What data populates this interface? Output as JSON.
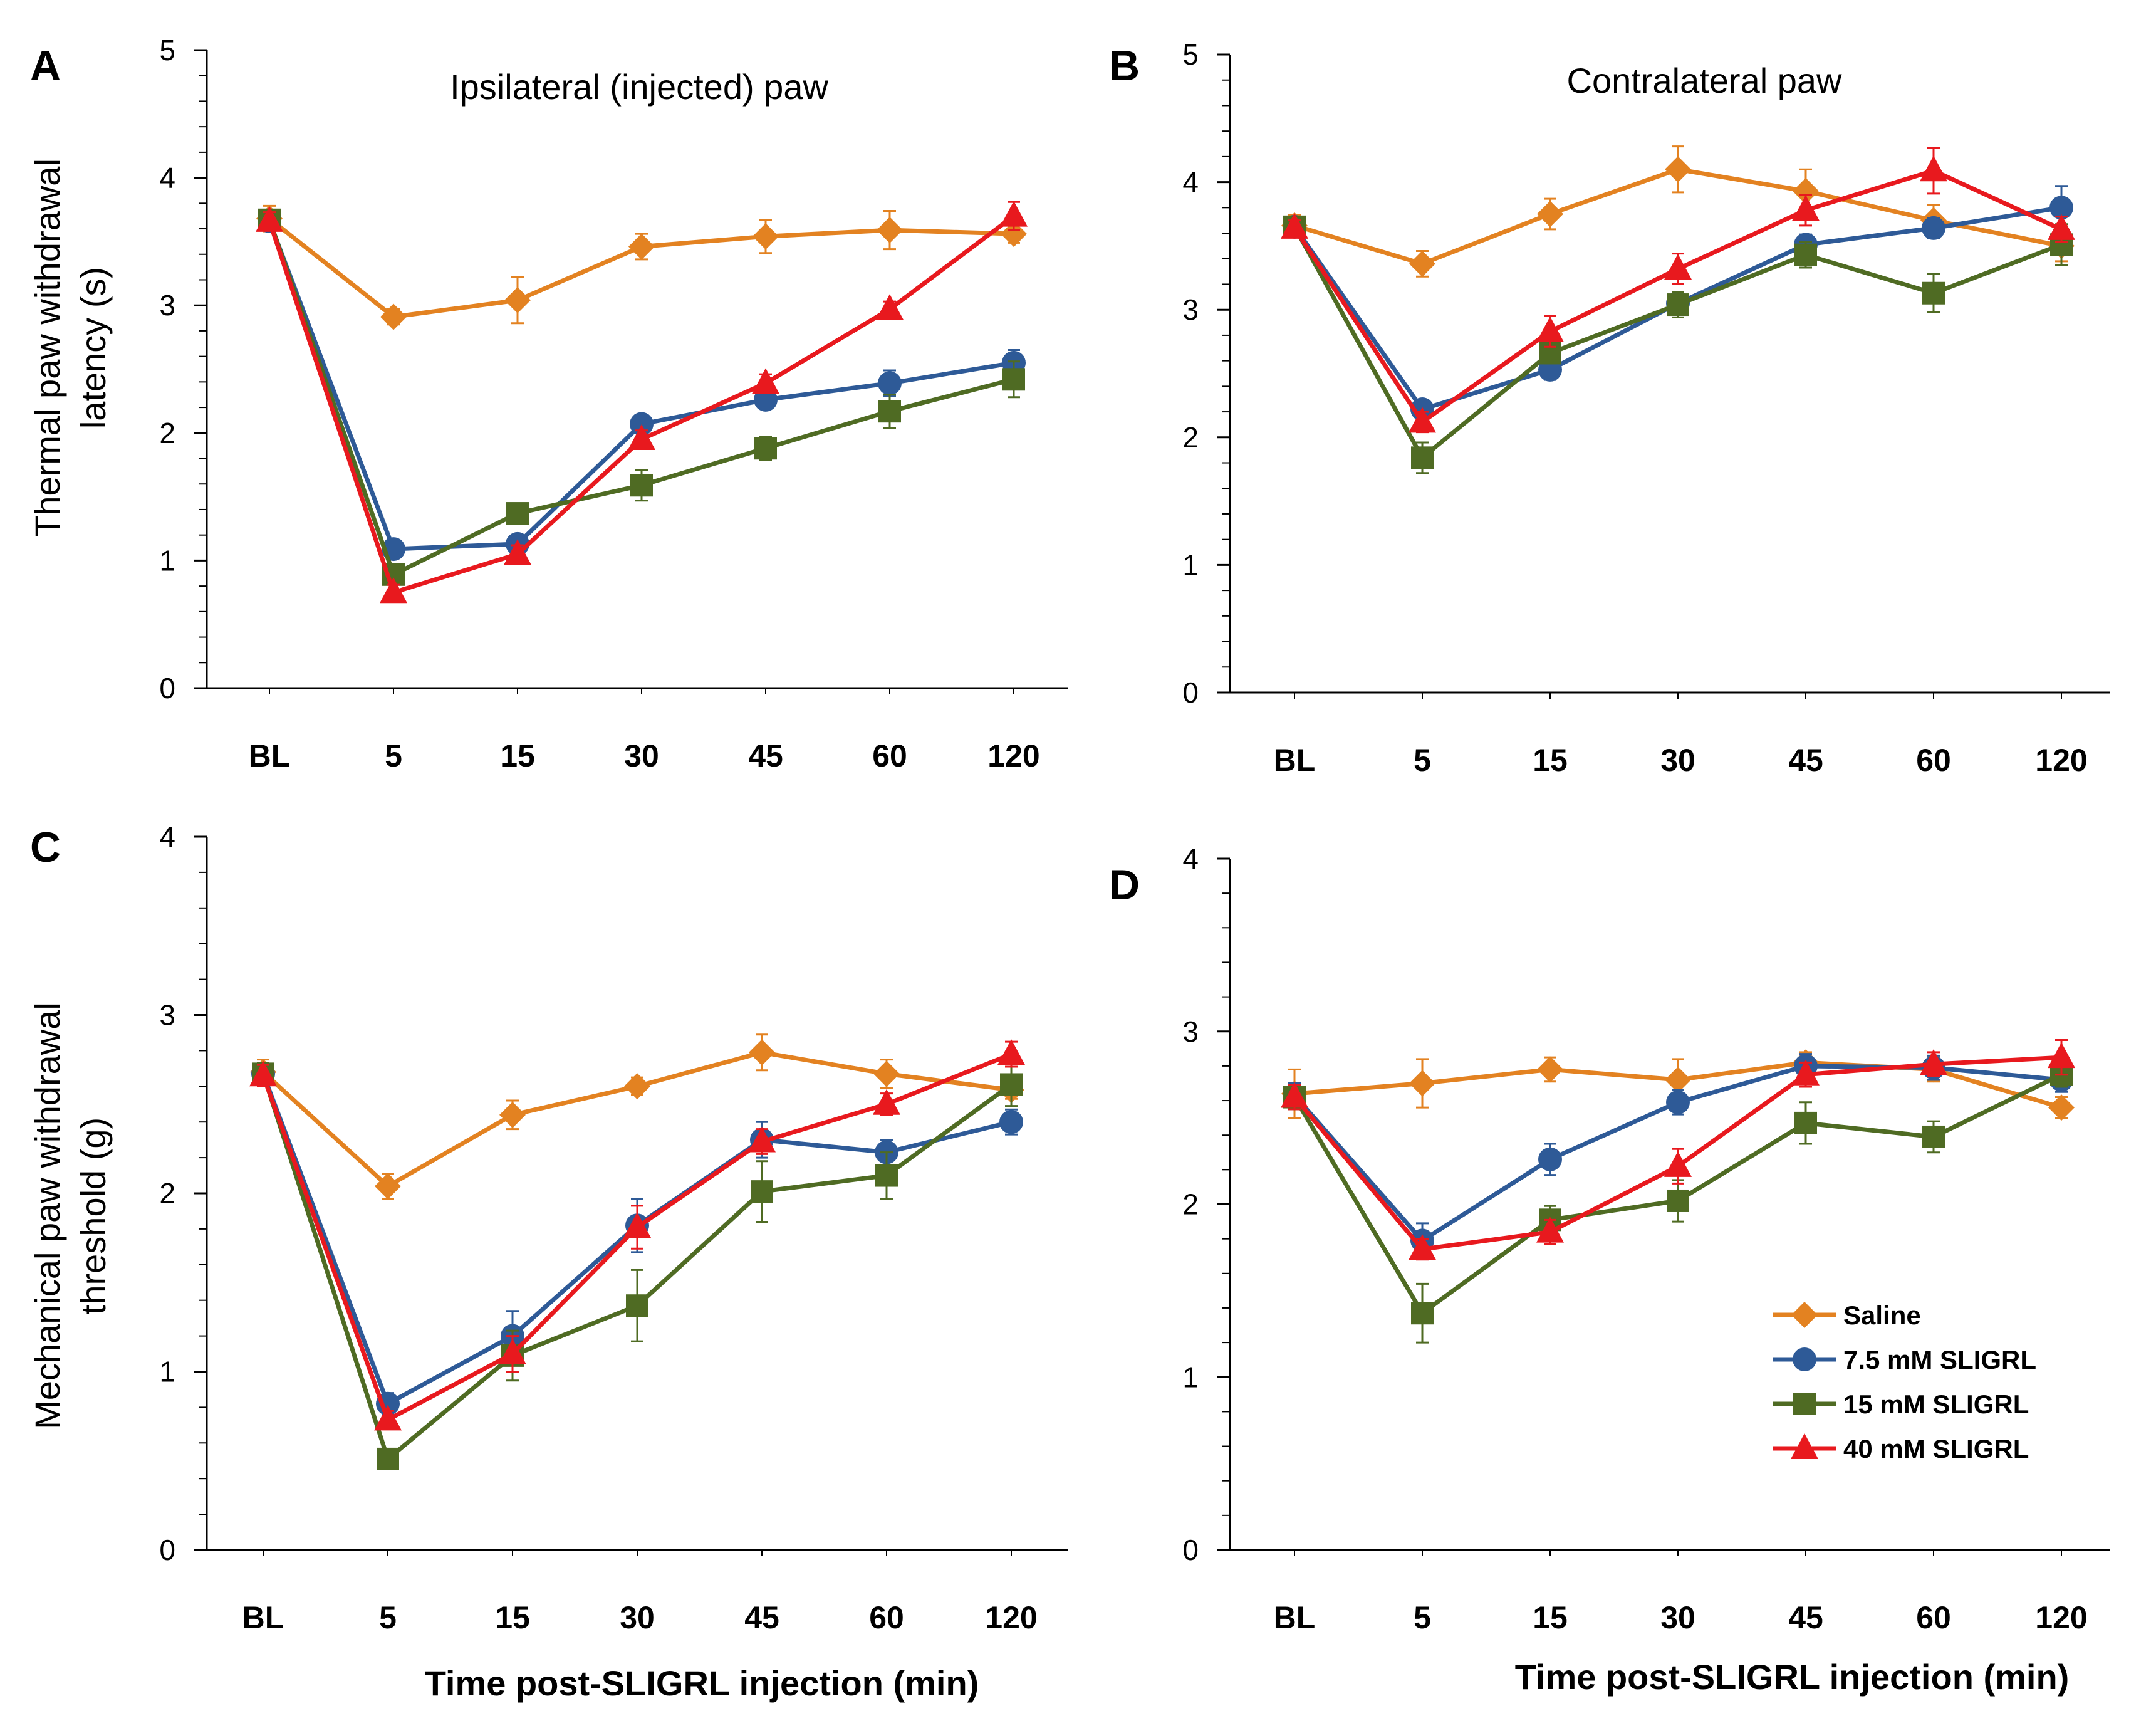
{
  "colors": {
    "saline": "#E38221",
    "sligrl_7_5": "#2E5A97",
    "sligrl_15": "#4F6B23",
    "sligrl_40": "#E8191E"
  },
  "legend": [
    {
      "key": "saline",
      "label": "Saline",
      "marker": "diamond"
    },
    {
      "key": "sligrl_7_5",
      "label": "7.5 mM SLIGRL",
      "marker": "circle"
    },
    {
      "key": "sligrl_15",
      "label": "15 mM SLIGRL",
      "marker": "square"
    },
    {
      "key": "sligrl_40",
      "label": "40 mM SLIGRL",
      "marker": "triangle"
    }
  ],
  "chart_data": [
    {
      "panel": "A",
      "type": "line",
      "title": "Ipsilateral (injected) paw",
      "ylabel_lines": [
        "Thermal paw withdrawal",
        "latency (s)"
      ],
      "xlabel": "",
      "categories": [
        "BL",
        "5",
        "15",
        "30",
        "45",
        "60",
        "120"
      ],
      "ylim": [
        0,
        5
      ],
      "yticks": [
        "0",
        "1",
        "2",
        "3",
        "4",
        "5"
      ],
      "series": [
        {
          "key": "saline",
          "name": "Saline",
          "values": [
            3.68,
            2.91,
            3.04,
            3.46,
            3.54,
            3.59,
            3.56
          ],
          "errors": [
            0.1,
            0.06,
            0.18,
            0.1,
            0.13,
            0.15,
            0.07
          ]
        },
        {
          "key": "sligrl_7_5",
          "name": "7.5 mM SLIGRL",
          "values": [
            3.66,
            1.09,
            1.13,
            2.07,
            2.26,
            2.39,
            2.55
          ],
          "errors": [
            0.07,
            0.05,
            0.05,
            0.06,
            0.07,
            0.1,
            0.1
          ]
        },
        {
          "key": "sligrl_15",
          "name": "15 mM SLIGRL",
          "values": [
            3.67,
            0.89,
            1.37,
            1.59,
            1.88,
            2.17,
            2.42
          ],
          "errors": [
            0.07,
            0.06,
            0.05,
            0.12,
            0.09,
            0.13,
            0.14
          ]
        },
        {
          "key": "sligrl_40",
          "name": "40 mM SLIGRL",
          "values": [
            3.66,
            0.75,
            1.05,
            1.95,
            2.39,
            2.97,
            3.7
          ],
          "errors": [
            0.07,
            0.06,
            0.07,
            0.07,
            0.07,
            0.06,
            0.11
          ]
        }
      ]
    },
    {
      "panel": "B",
      "type": "line",
      "title": "Contralateral  paw",
      "ylabel_lines": [],
      "xlabel": "",
      "categories": [
        "BL",
        "5",
        "15",
        "30",
        "45",
        "60",
        "120"
      ],
      "ylim": [
        0,
        5
      ],
      "yticks": [
        "0",
        "1",
        "2",
        "3",
        "4",
        "5"
      ],
      "series": [
        {
          "key": "saline",
          "name": "Saline",
          "values": [
            3.66,
            3.36,
            3.75,
            4.1,
            3.93,
            3.7,
            3.5
          ],
          "errors": [
            0.08,
            0.1,
            0.12,
            0.18,
            0.17,
            0.12,
            0.12
          ]
        },
        {
          "key": "sligrl_7_5",
          "name": "7.5 mM SLIGRL",
          "values": [
            3.65,
            2.22,
            2.53,
            3.05,
            3.51,
            3.64,
            3.8
          ],
          "errors": [
            0.06,
            0.05,
            0.08,
            0.08,
            0.08,
            0.08,
            0.17
          ]
        },
        {
          "key": "sligrl_15",
          "name": "15 mM SLIGRL",
          "values": [
            3.65,
            1.84,
            2.66,
            3.04,
            3.43,
            3.13,
            3.51
          ],
          "errors": [
            0.06,
            0.12,
            0.08,
            0.1,
            0.1,
            0.15,
            0.16
          ]
        },
        {
          "key": "sligrl_40",
          "name": "40 mM SLIGRL",
          "values": [
            3.64,
            2.12,
            2.83,
            3.32,
            3.78,
            4.09,
            3.63
          ],
          "errors": [
            0.06,
            0.08,
            0.12,
            0.12,
            0.12,
            0.18,
            0.1
          ]
        }
      ]
    },
    {
      "panel": "C",
      "type": "line",
      "title": "",
      "ylabel_lines": [
        "Mechanical paw withdrawal",
        "threshold (g)"
      ],
      "xlabel": "Time post-SLIGRL injection (min)",
      "categories": [
        "BL",
        "5",
        "15",
        "30",
        "45",
        "60",
        "120"
      ],
      "ylim": [
        0,
        4
      ],
      "yticks": [
        "0",
        "1",
        "2",
        "3",
        "4"
      ],
      "series": [
        {
          "key": "saline",
          "name": "Saline",
          "values": [
            2.68,
            2.04,
            2.44,
            2.6,
            2.79,
            2.67,
            2.58
          ],
          "errors": [
            0.07,
            0.07,
            0.08,
            0.05,
            0.1,
            0.08,
            0.05
          ]
        },
        {
          "key": "sligrl_7_5",
          "name": "7.5 mM SLIGRL",
          "values": [
            2.67,
            0.82,
            1.2,
            1.82,
            2.3,
            2.23,
            2.4
          ],
          "errors": [
            0.06,
            0.06,
            0.14,
            0.15,
            0.1,
            0.07,
            0.07
          ]
        },
        {
          "key": "sligrl_15",
          "name": "15 mM SLIGRL",
          "values": [
            2.67,
            0.51,
            1.09,
            1.37,
            2.01,
            2.1,
            2.61
          ],
          "errors": [
            0.06,
            0.05,
            0.14,
            0.2,
            0.17,
            0.13,
            0.12
          ]
        },
        {
          "key": "sligrl_40",
          "name": "40 mM SLIGRL",
          "values": [
            2.66,
            0.73,
            1.1,
            1.81,
            2.29,
            2.5,
            2.78
          ],
          "errors": [
            0.06,
            0.05,
            0.1,
            0.12,
            0.07,
            0.06,
            0.07
          ]
        }
      ]
    },
    {
      "panel": "D",
      "type": "line",
      "title": "",
      "ylabel_lines": [],
      "xlabel": "Time post-SLIGRL injection (min)",
      "categories": [
        "BL",
        "5",
        "15",
        "30",
        "45",
        "60",
        "120"
      ],
      "ylim": [
        0,
        4
      ],
      "yticks": [
        "0",
        "1",
        "2",
        "3",
        "4"
      ],
      "legend_position": "bottom-right",
      "series": [
        {
          "key": "saline",
          "name": "Saline",
          "values": [
            2.64,
            2.7,
            2.78,
            2.72,
            2.82,
            2.78,
            2.56
          ],
          "errors": [
            0.14,
            0.14,
            0.07,
            0.12,
            0.06,
            0.07,
            0.06
          ]
        },
        {
          "key": "sligrl_7_5",
          "name": "7.5 mM SLIGRL",
          "values": [
            2.63,
            1.79,
            2.26,
            2.59,
            2.8,
            2.79,
            2.72
          ],
          "errors": [
            0.07,
            0.1,
            0.09,
            0.07,
            0.07,
            0.07,
            0.07
          ]
        },
        {
          "key": "sligrl_15",
          "name": "15 mM SLIGRL",
          "values": [
            2.62,
            1.37,
            1.91,
            2.02,
            2.47,
            2.39,
            2.75
          ],
          "errors": [
            0.07,
            0.17,
            0.08,
            0.12,
            0.12,
            0.09,
            0.07
          ]
        },
        {
          "key": "sligrl_40",
          "name": "40 mM SLIGRL",
          "values": [
            2.62,
            1.74,
            1.84,
            2.22,
            2.75,
            2.81,
            2.85
          ],
          "errors": [
            0.07,
            0.06,
            0.07,
            0.1,
            0.07,
            0.07,
            0.1
          ]
        }
      ]
    }
  ]
}
